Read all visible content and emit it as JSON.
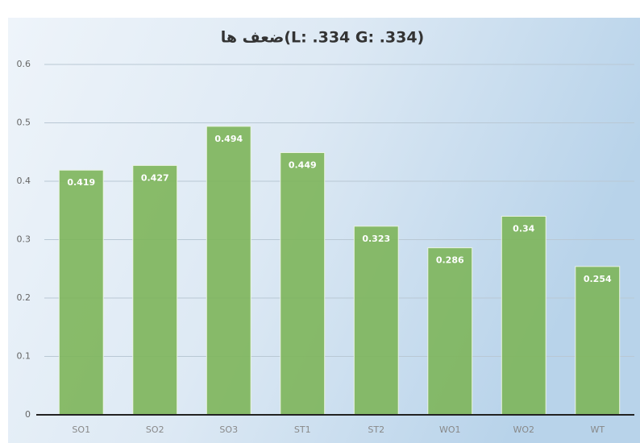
{
  "chart_data": {
    "type": "bar",
    "title": "ضعف ها(L: .334 G: .334)",
    "categories": [
      "SO1",
      "SO2",
      "SO3",
      "ST1",
      "ST2",
      "WO1",
      "WO2",
      "WT"
    ],
    "values": [
      0.419,
      0.427,
      0.494,
      0.449,
      0.323,
      0.286,
      0.34,
      0.254
    ],
    "color": "#7db55a",
    "ylim": [
      0,
      0.6
    ],
    "yticks": [
      0,
      0.1,
      0.2,
      0.3,
      0.4,
      0.5,
      0.6
    ],
    "grid": true
  }
}
